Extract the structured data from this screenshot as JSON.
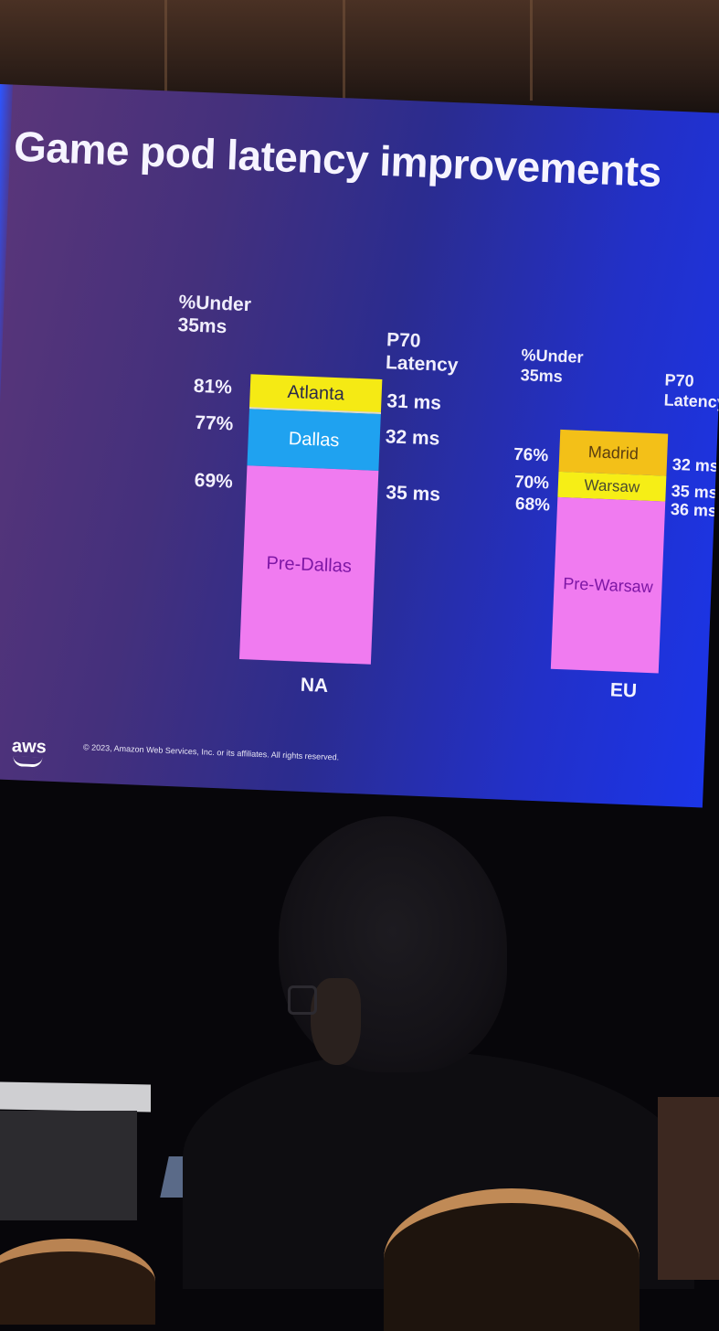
{
  "slide": {
    "title": "Game pod latency improvements",
    "header_under": "%Under 35ms",
    "header_latency": "P70 Latency",
    "na": {
      "region": "NA",
      "segments": [
        {
          "label": "Atlanta",
          "pct": "81%",
          "latency": "31 ms",
          "color": "#f5ea14"
        },
        {
          "label": "Dallas",
          "pct": "77%",
          "latency": "32 ms",
          "color": "#1fa2f0"
        },
        {
          "label": "Pre-Dallas",
          "pct": "69%",
          "latency": "35 ms",
          "color": "#f07bf0"
        }
      ]
    },
    "eu": {
      "region": "EU",
      "segments": [
        {
          "label": "Madrid",
          "pct": "76%",
          "latency": "32 ms",
          "color": "#f3c018"
        },
        {
          "label": "Warsaw",
          "pct": "70%",
          "latency": "35 ms",
          "color": "#f6ee16"
        },
        {
          "label": "Pre-Warsaw",
          "pct": "68%",
          "latency": "36 ms",
          "color": "#f07bf0"
        }
      ]
    },
    "footer_logo": "aws",
    "footer_copyright": "© 2023, Amazon Web Services, Inc. or its affiliates. All rights reserved."
  }
}
